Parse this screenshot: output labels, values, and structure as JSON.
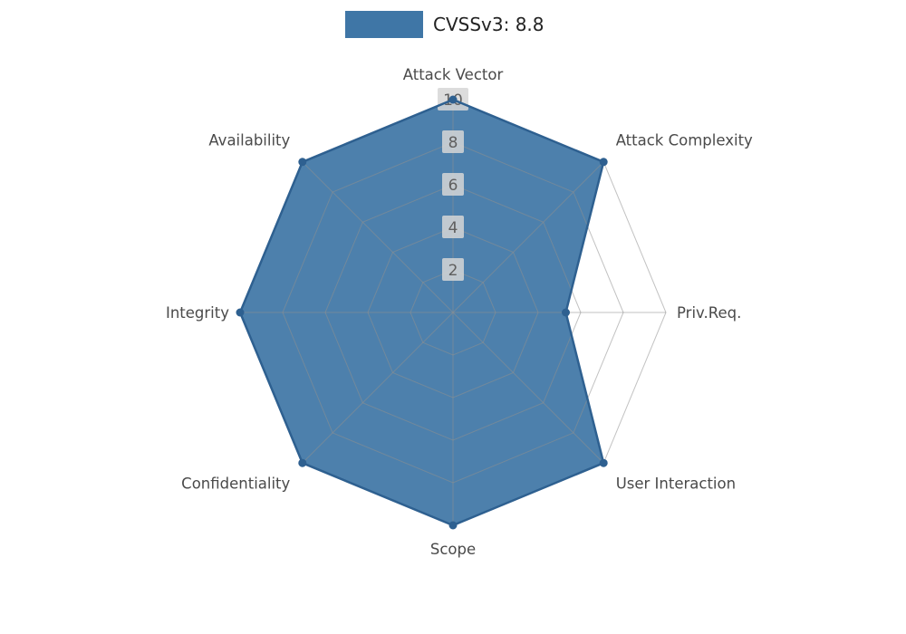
{
  "legend": {
    "label": "CVSSv3: 8.8"
  },
  "chart_data": {
    "type": "radar",
    "title": "CVSSv3: 8.8",
    "axes": [
      "Attack Vector",
      "Attack Complexity",
      "Priv.Req.",
      "User Interaction",
      "Scope",
      "Confidentiality",
      "Integrity",
      "Availability"
    ],
    "series": [
      {
        "name": "CVSSv3: 8.8",
        "values": [
          10,
          10,
          5.3,
          10,
          10,
          10,
          10,
          10
        ]
      }
    ],
    "rmin": 0,
    "rmax": 10,
    "ticks": [
      2,
      4,
      6,
      8,
      10
    ],
    "grid": true,
    "legend_position": "top-center",
    "colors": {
      "fill": "#3f76a6",
      "fill_opacity": 0.93,
      "line": "#2e6090",
      "grid": "#8f8f8f",
      "tick_text": "#5f5f5f",
      "tick_box": "#d6d6d6",
      "axis_label": "#4a4a4a",
      "legend_text": "#222222",
      "background": "#ffffff"
    }
  }
}
